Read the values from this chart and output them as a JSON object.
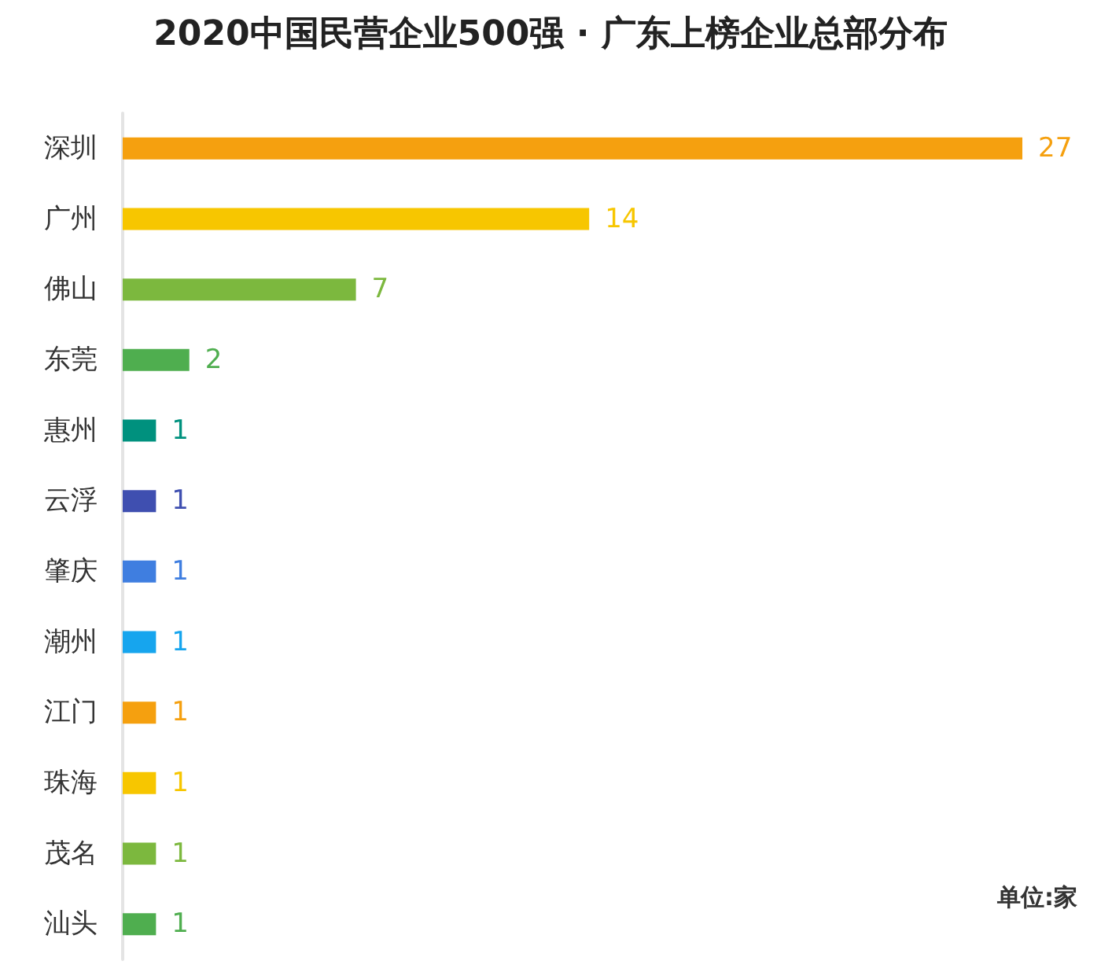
{
  "chart_data": {
    "type": "bar",
    "orientation": "horizontal",
    "title": "2020中国民营企业500强 · 广东上榜企业总部分布",
    "categories": [
      "深圳",
      "广州",
      "佛山",
      "东莞",
      "惠州",
      "云浮",
      "肇庆",
      "潮州",
      "江门",
      "珠海",
      "茂名",
      "汕头"
    ],
    "values": [
      27,
      14,
      7,
      2,
      1,
      1,
      1,
      1,
      1,
      1,
      1,
      1
    ],
    "colors": [
      "#f5a00f",
      "#f7c600",
      "#7cb83e",
      "#4fae4f",
      "#00917e",
      "#3f4fb0",
      "#3f7ee0",
      "#16a5ee",
      "#f5a00f",
      "#f7c600",
      "#7cb83e",
      "#4fae4f"
    ],
    "data_labels": true,
    "tick_labels": "y",
    "annotations": [
      "单位:家"
    ]
  }
}
